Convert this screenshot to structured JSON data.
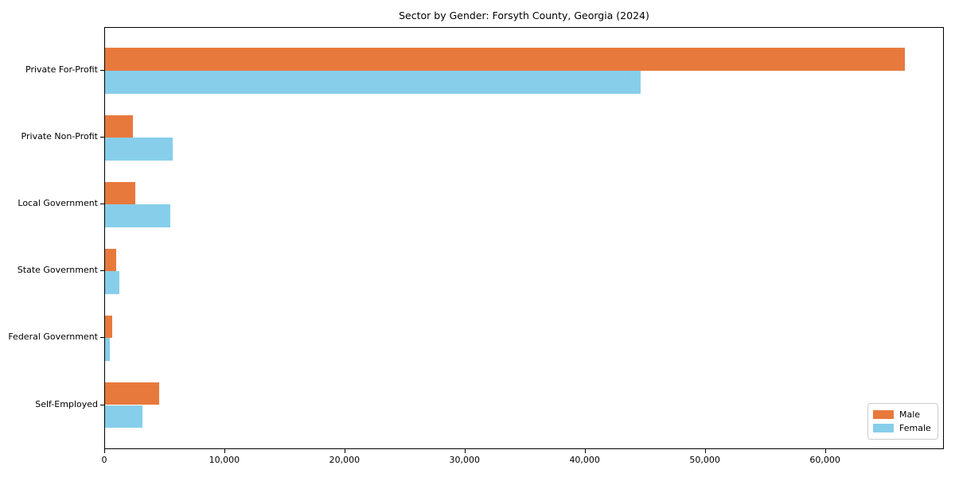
{
  "chart_data": {
    "type": "bar",
    "orientation": "horizontal",
    "title": "Sector by Gender: Forsyth County, Georgia (2024)",
    "categories": [
      "Private For-Profit",
      "Private Non-Profit",
      "Local Government",
      "State Government",
      "Federal Government",
      "Self-Employed"
    ],
    "series": [
      {
        "name": "Male",
        "color": "#e8793d",
        "values": [
          66600,
          2300,
          2500,
          900,
          600,
          4500
        ]
      },
      {
        "name": "Female",
        "color": "#87ceeb",
        "values": [
          44600,
          5600,
          5400,
          1200,
          400,
          3100
        ]
      }
    ],
    "xlabel": "",
    "ylabel": "",
    "xlim": [
      0,
      69900
    ],
    "x_ticks": [
      {
        "value": 0,
        "label": "0"
      },
      {
        "value": 10000,
        "label": "10,000"
      },
      {
        "value": 20000,
        "label": "20,000"
      },
      {
        "value": 30000,
        "label": "30,000"
      },
      {
        "value": 40000,
        "label": "40,000"
      },
      {
        "value": 50000,
        "label": "50,000"
      },
      {
        "value": 60000,
        "label": "60,000"
      }
    ],
    "grid": false,
    "legend": {
      "position": "lower right",
      "entries": [
        "Male",
        "Female"
      ]
    },
    "colors": {
      "male": "#e8793d",
      "female": "#87ceeb",
      "spine": "#000000",
      "legend_border": "#cccccc"
    }
  }
}
